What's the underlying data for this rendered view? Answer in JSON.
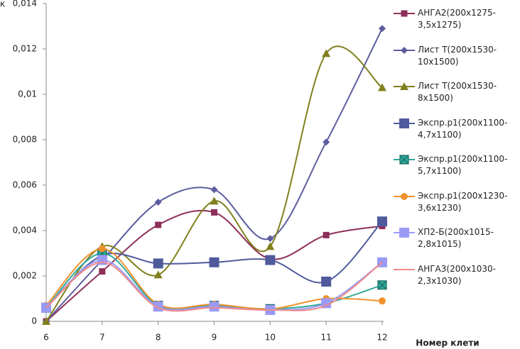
{
  "chart_data": {
    "type": "line",
    "smooth": true,
    "y_label": "к",
    "x_label": "Номер клети",
    "x": [
      6,
      7,
      8,
      9,
      10,
      11,
      12
    ],
    "xlim": [
      6,
      12
    ],
    "xticks": [
      6,
      7,
      8,
      9,
      10,
      11,
      12
    ],
    "ylim": [
      0,
      0.014
    ],
    "yticks": [
      0,
      {
        "value": 0.002,
        "label": "0,002"
      },
      {
        "value": 0.004,
        "label": "0,004"
      },
      {
        "value": 0.006,
        "label": "0,006"
      },
      {
        "value": 0.008,
        "label": "0,008"
      },
      {
        "value": 0.01,
        "label": "0,01"
      },
      {
        "value": 0.012,
        "label": "0,012"
      },
      {
        "value": 0.014,
        "label": "0,014"
      }
    ],
    "grid": false,
    "legend": "right",
    "series": [
      {
        "name": "АНГА2(200х1275-3,5х1275)",
        "color": "#8e2f5a",
        "marker": "square",
        "values": [
          0,
          0.0022,
          0.00425,
          0.0048,
          0.00275,
          0.0038,
          0.0042
        ]
      },
      {
        "name": "Лист Т(200х1530-10х1500)",
        "color": "#5c5e9e",
        "marker": "diamond",
        "values": [
          0,
          0.0027,
          0.00525,
          0.0058,
          0.00365,
          0.0079,
          0.0129
        ]
      },
      {
        "name": "Лист Т(200х1530-8х1500)",
        "color": "#80801f",
        "marker": "triangle",
        "values": [
          0,
          0.0033,
          0.00205,
          0.0053,
          0.0033,
          0.0118,
          0.0103
        ]
      },
      {
        "name": "Экспр.р1(200х1100-4,7х1100)",
        "color": "#4f5a9c",
        "marker": "bigsquare",
        "values": [
          0.0006,
          0.0029,
          0.00255,
          0.0026,
          0.0027,
          0.00175,
          0.0044
        ]
      },
      {
        "name": "Экспр.р1(200х1100-5,7х1100)",
        "color": "#2fa89a",
        "marker": "xsquare",
        "values": [
          0.0006,
          0.003,
          0.0007,
          0.0007,
          0.00055,
          0.0008,
          0.0016
        ]
      },
      {
        "name": "Экспр.р1(200х1230-3,6х1230)",
        "color": "#f0922e",
        "marker": "circle",
        "values": [
          0.0007,
          0.0032,
          0.00075,
          0.00075,
          0.00055,
          0.001,
          0.0009
        ]
      },
      {
        "name": "ХП2-Б(200х1015-2,8х1015)",
        "color": "#9a9af5",
        "marker": "bigsquare",
        "values": [
          0.0006,
          0.0027,
          0.00065,
          0.00065,
          0.0005,
          0.0008,
          0.0026
        ]
      },
      {
        "name": "АНГА3(200х1030-2,3х1030)",
        "color": "#f08a8a",
        "marker": "none",
        "values": [
          0.0006,
          0.0026,
          0.0006,
          0.0006,
          0.0005,
          0.0007,
          0.0026
        ]
      }
    ]
  }
}
